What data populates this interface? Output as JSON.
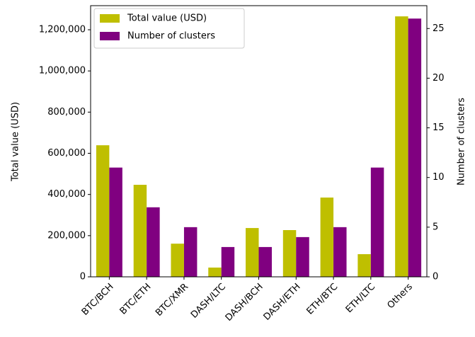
{
  "chart_data": {
    "type": "bar",
    "categories": [
      "BTC/BCH",
      "BTC/ETH",
      "BTC/XMR",
      "DASH/LTC",
      "DASH/BCH",
      "DASH/ETH",
      "ETH/BTC",
      "ETH/LTC",
      "Others"
    ],
    "series": [
      {
        "name": "Total value (USD)",
        "color": "#bfbf00",
        "values": [
          639000,
          447000,
          161000,
          45000,
          237000,
          227000,
          385000,
          110000,
          1265000
        ]
      },
      {
        "name": "Number of clusters",
        "color": "#800080",
        "axis": "y2",
        "values": [
          11,
          7,
          5,
          3,
          3,
          4,
          5,
          11,
          26
        ]
      }
    ],
    "ylabel": "Total value (USD)",
    "y2label": "Number of clusters",
    "ylim": [
      0,
      1317000
    ],
    "yticks": [
      0,
      {
        "value": 200000,
        "label": "200,000"
      },
      {
        "value": 400000,
        "label": "400,000"
      },
      {
        "value": 600000,
        "label": "600,000"
      },
      {
        "value": 800000,
        "label": "800,000"
      },
      {
        "value": 1000000,
        "label": "1,000,000"
      },
      {
        "value": 1200000,
        "label": "1,200,000"
      }
    ],
    "y2lim": [
      0,
      27.3
    ],
    "y2ticks": [
      0,
      5,
      10,
      15,
      20,
      25
    ],
    "legend": "upper left",
    "grid": false
  }
}
